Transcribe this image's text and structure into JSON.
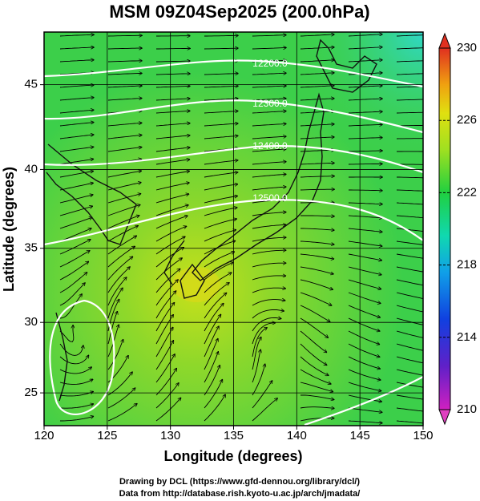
{
  "title": "MSM 09Z04Sep2025 (200.0hPa)",
  "map": {
    "xlabel": "Longitude (degrees)",
    "ylabel": "Latitude  (degrees)",
    "projection": "mercator",
    "grid": true,
    "xlim": [
      120,
      150
    ],
    "ylim": [
      22.6,
      47.9
    ],
    "xticks": [
      120,
      125,
      130,
      135,
      140,
      145,
      150
    ],
    "yticks": [
      25,
      30,
      35,
      40,
      45
    ]
  },
  "colorbar": {
    "lim": [
      210,
      230
    ],
    "ticks": [
      210,
      214,
      218,
      222,
      226,
      230
    ]
  },
  "contour_labels": [
    "12200.0",
    "12300.0",
    "12400.0",
    "12500.0"
  ],
  "footer": [
    "Drawing by DCL (https://www.gfd-dennou.org/library/dcl/)",
    "Data from http://database.rish.kyoto-u.ac.jp/arch/jmadata/"
  ]
}
